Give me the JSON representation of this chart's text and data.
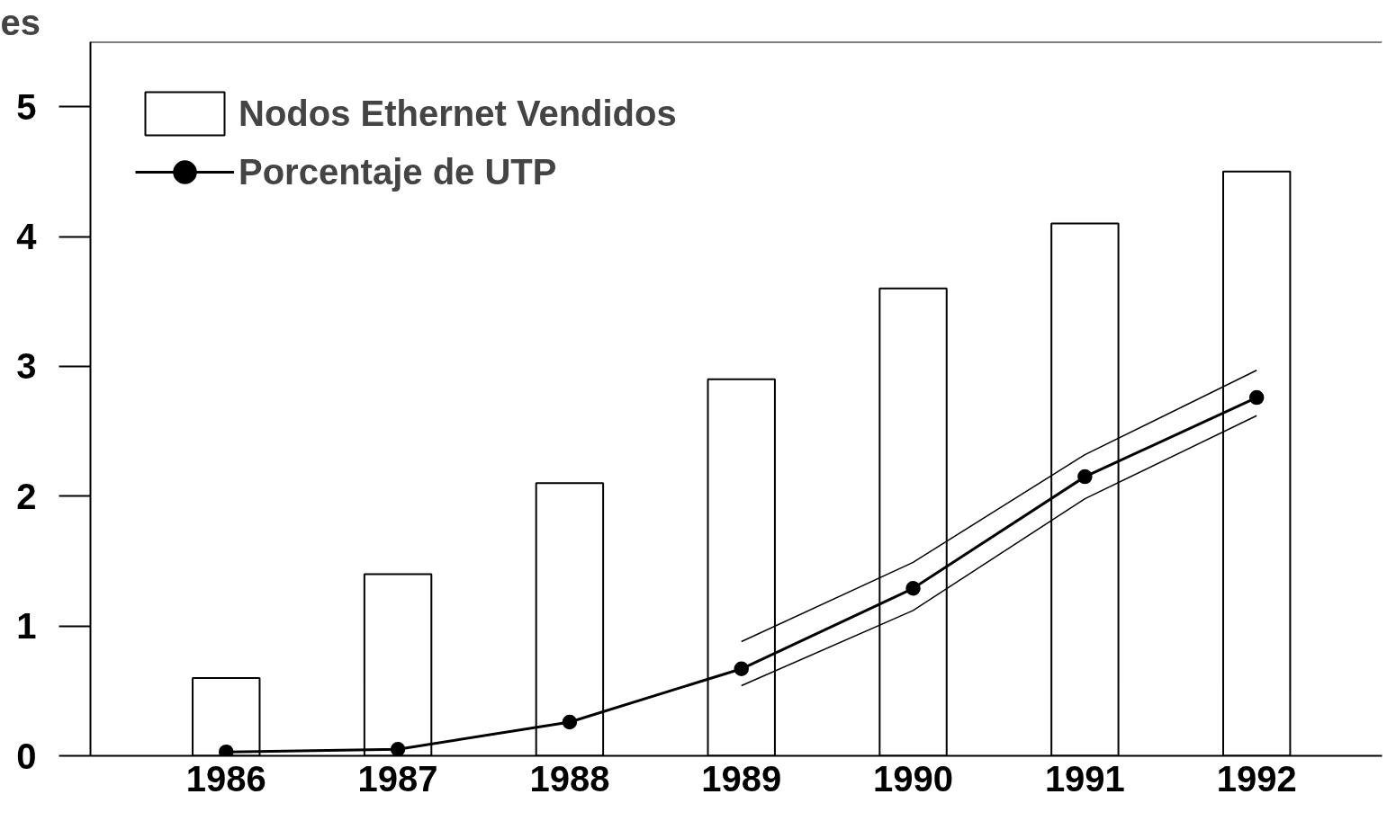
{
  "chart_data": {
    "type": "bar",
    "ylabel": "es",
    "categories": [
      "1986",
      "1987",
      "1988",
      "1989",
      "1990",
      "1991",
      "1992"
    ],
    "series": [
      {
        "name": "Nodos Ethernet Vendidos",
        "color": "#ffffff",
        "values": [
          0.6,
          1.4,
          2.1,
          2.9,
          3.6,
          4.1,
          4.5
        ]
      },
      {
        "name": "Porcentaje de UTP",
        "type": "line",
        "marker": "circle",
        "color": "#000000",
        "values": [
          0.03,
          0.05,
          0.26,
          0.67,
          1.29,
          2.15,
          2.76
        ]
      },
      {
        "type": "line",
        "color": "#000000",
        "values": [
          null,
          null,
          null,
          0.88,
          1.49,
          2.32,
          2.97
        ]
      },
      {
        "type": "line",
        "color": "#000000",
        "values": [
          null,
          null,
          null,
          0.54,
          1.12,
          1.98,
          2.62
        ]
      }
    ],
    "ylim": [
      0,
      5.5
    ],
    "yticks": [
      0,
      1,
      2,
      3,
      4,
      5
    ],
    "legend": "top left",
    "line_style": "solid",
    "grid": false
  }
}
